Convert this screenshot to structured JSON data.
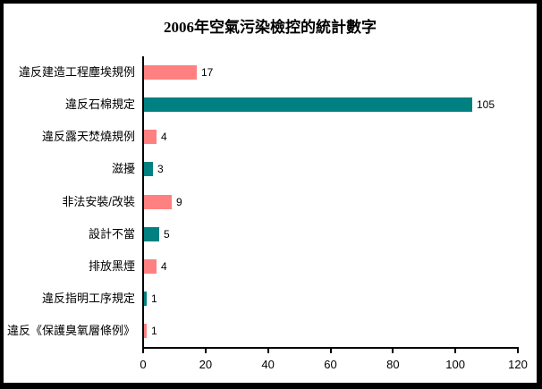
{
  "title": "2006年空氣污染檢控的統計數字",
  "chart_data": {
    "type": "bar",
    "orientation": "horizontal",
    "title": "2006年空氣污染檢控的統計數字",
    "categories": [
      "違反建造工程塵埃規例",
      "違反石棉規定",
      "違反露天焚燒規例",
      "滋擾",
      "非法安裝/改裝",
      "設計不當",
      "排放黑煙",
      "違反指明工序規定",
      "違反《保護臭氧層條例》"
    ],
    "values": [
      17,
      105,
      4,
      3,
      9,
      5,
      4,
      1,
      1
    ],
    "data_labels": [
      "17",
      "105",
      "4",
      "3",
      "9",
      "5",
      "4",
      "1",
      "1"
    ],
    "bar_colors": [
      "#ff8080",
      "#008080",
      "#ff8080",
      "#008080",
      "#ff8080",
      "#008080",
      "#ff8080",
      "#008080",
      "#ff8080"
    ],
    "xlabel": "",
    "ylabel": "",
    "xlim": [
      0,
      120
    ],
    "x_ticks": [
      "0",
      "20",
      "40",
      "60",
      "80",
      "100",
      "120"
    ],
    "grid": false,
    "legend": false
  },
  "colors": {
    "salmon_series": "#ff8080",
    "teal_series": "#008080",
    "axis": "#000000",
    "frame_border": "#000000",
    "background": "#ffffff"
  }
}
